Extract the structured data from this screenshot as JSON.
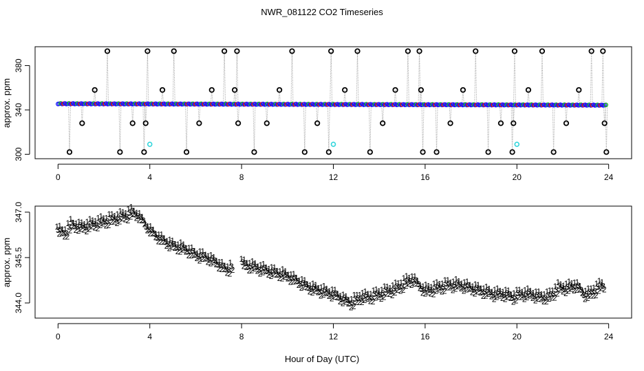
{
  "figure": {
    "title": "NWR_081122  CO2 Timeseries",
    "xlabel": "Hour of Day (UTC)"
  },
  "colors": {
    "axis": "#000000",
    "outlier": "#000000",
    "series_1": "#e8001c",
    "series_2": "#19b419",
    "series_3": "#1a1aff",
    "connector": "#9a9a9a",
    "reference": "#33d6dc"
  },
  "chart_data": [
    {
      "type": "scatter",
      "title": "",
      "xlabel": "",
      "ylabel": "approx. ppm",
      "xlim": [
        -1,
        25
      ],
      "ylim": [
        296,
        397
      ],
      "xticks": [
        "0",
        "4",
        "8",
        "12",
        "16",
        "20",
        "24"
      ],
      "yticks": [
        "300",
        "340",
        "380"
      ],
      "baseline": {
        "start": 345.6,
        "end": 344.3,
        "hours": [
          0.0,
          23.9
        ]
      },
      "outliers": {
        "hours": [
          0.5,
          1.05,
          1.6,
          2.15,
          2.7,
          3.25,
          3.75,
          3.82,
          3.9,
          4.55,
          5.05,
          5.6,
          6.15,
          6.7,
          7.25,
          7.7,
          7.8,
          7.85,
          8.55,
          9.1,
          9.65,
          10.2,
          10.75,
          11.3,
          11.8,
          11.9,
          12.5,
          13.05,
          13.6,
          14.15,
          14.7,
          15.25,
          15.75,
          15.82,
          15.9,
          16.5,
          17.1,
          17.65,
          18.2,
          18.75,
          19.3,
          19.8,
          19.85,
          19.9,
          20.5,
          21.1,
          21.6,
          22.15,
          22.7,
          23.25,
          23.75,
          23.82,
          23.9
        ],
        "values": [
          302,
          328,
          358,
          393,
          302,
          328,
          302,
          328,
          393,
          358,
          393,
          302,
          328,
          358,
          393,
          358,
          393,
          328,
          302,
          328,
          358,
          393,
          302,
          328,
          302,
          393,
          358,
          393,
          302,
          328,
          358,
          393,
          393,
          358,
          302,
          302,
          328,
          358,
          393,
          302,
          328,
          302,
          328,
          393,
          358,
          393,
          302,
          328,
          358,
          393,
          393,
          328,
          302
        ]
      },
      "reference_points": {
        "hours": [
          4.0,
          12.0,
          20.0
        ],
        "values": [
          309,
          309,
          309
        ]
      }
    },
    {
      "type": "scatter",
      "title": "",
      "xlabel": "",
      "ylabel": "approx. ppm",
      "xlim": [
        -1,
        25
      ],
      "ylim": [
        343.5,
        347.2
      ],
      "xticks": [
        "0",
        "4",
        "8",
        "12",
        "16",
        "20",
        "24"
      ],
      "yticks": [
        "344.0",
        "345.5",
        "347.0"
      ],
      "markers": [
        "1",
        "2",
        "3"
      ],
      "series": [
        {
          "name": "1",
          "color_key": "series_1"
        },
        {
          "name": "2",
          "color_key": "series_2"
        },
        {
          "name": "3",
          "color_key": "series_3"
        }
      ],
      "trend": {
        "hours": [
          0.0,
          0.3,
          0.6,
          1.0,
          1.5,
          2.0,
          2.5,
          3.0,
          3.2,
          3.5,
          4.0,
          4.5,
          5.0,
          5.5,
          6.0,
          6.5,
          7.0,
          7.3,
          7.6,
          8.0,
          8.5,
          9.0,
          9.5,
          10.0,
          10.5,
          11.0,
          11.5,
          12.0,
          12.5,
          12.8,
          13.2,
          13.6,
          14.0,
          14.4,
          14.8,
          15.2,
          15.5,
          15.7,
          16.0,
          16.5,
          17.0,
          17.5,
          18.0,
          18.5,
          19.0,
          19.5,
          19.8,
          20.2,
          20.6,
          21.0,
          21.4,
          21.8,
          22.2,
          22.6,
          22.9,
          23.2,
          23.5,
          23.8
        ],
        "values": [
          346.4,
          346.3,
          346.6,
          346.5,
          346.6,
          346.7,
          346.8,
          346.9,
          347.0,
          346.9,
          346.4,
          346.1,
          345.9,
          345.8,
          345.6,
          345.5,
          345.3,
          345.1,
          345.2,
          345.3,
          345.2,
          345.1,
          345.0,
          344.9,
          344.7,
          344.5,
          344.4,
          344.3,
          344.1,
          344.0,
          344.2,
          344.2,
          344.3,
          344.4,
          344.5,
          344.7,
          344.8,
          344.6,
          344.4,
          344.5,
          344.6,
          344.6,
          344.5,
          344.4,
          344.3,
          344.3,
          344.2,
          344.3,
          344.3,
          344.2,
          344.2,
          344.5,
          344.5,
          344.6,
          344.3,
          344.3,
          344.5,
          344.6
        ]
      }
    }
  ]
}
